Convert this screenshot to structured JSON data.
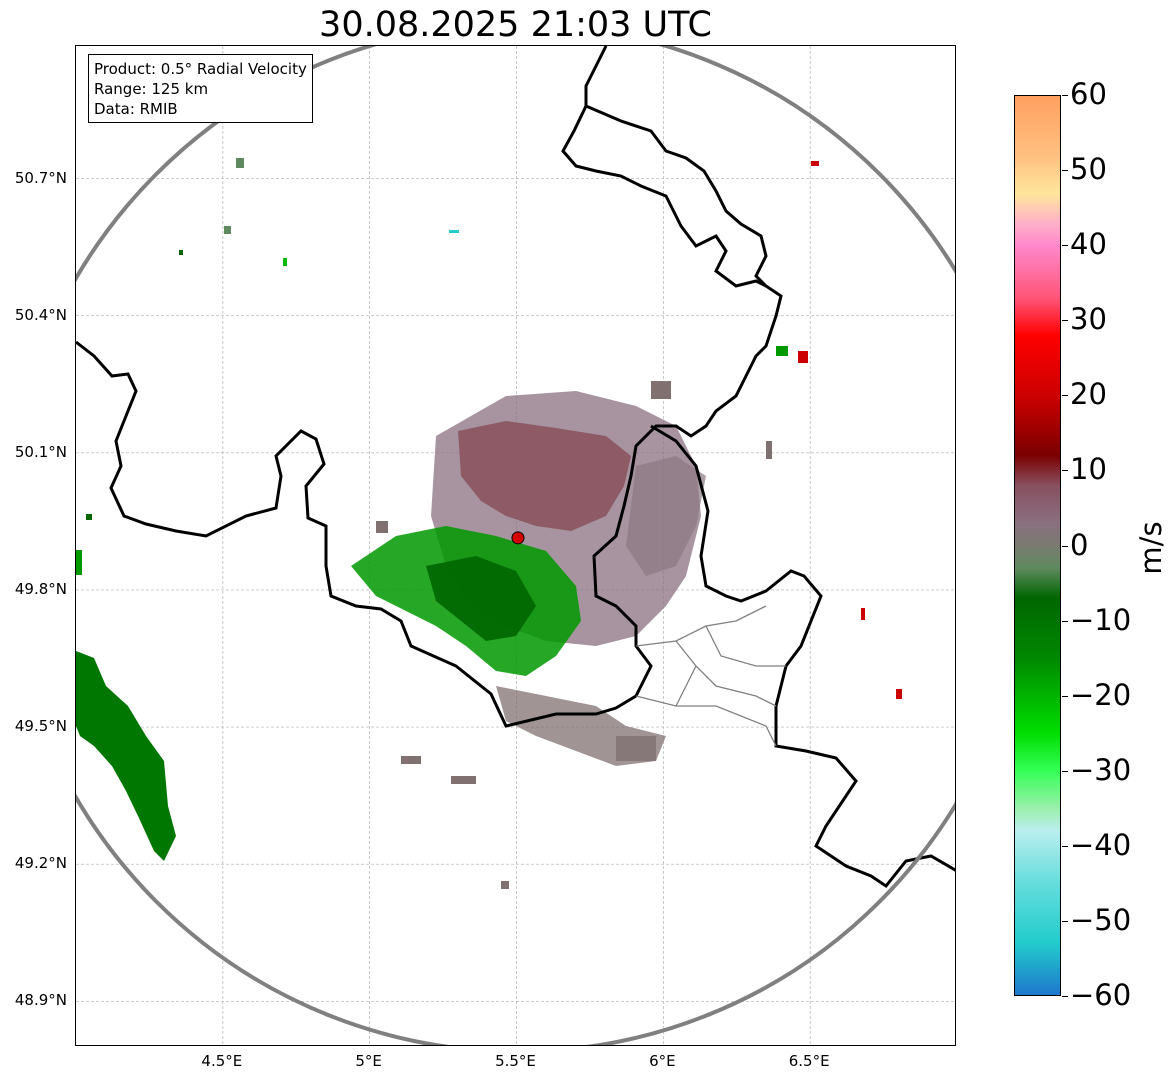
{
  "title": "30.08.2025 21:03 UTC",
  "info_box": {
    "product": "Product: 0.5° Radial Velocity",
    "range": "Range: 125 km",
    "source": "Data: RMIB"
  },
  "map": {
    "lon_range": [
      4.0,
      7.0
    ],
    "lat_range": [
      48.8,
      50.99
    ],
    "lon_ticks": [
      {
        "value": 4.5,
        "label": "4.5°E"
      },
      {
        "value": 5.0,
        "label": "5°E"
      },
      {
        "value": 5.5,
        "label": "5.5°E"
      },
      {
        "value": 6.0,
        "label": "6°E"
      },
      {
        "value": 6.5,
        "label": "6.5°E"
      }
    ],
    "lat_ticks": [
      {
        "value": 50.7,
        "label": "50.7°N"
      },
      {
        "value": 50.4,
        "label": "50.4°N"
      },
      {
        "value": 50.1,
        "label": "50.1°N"
      },
      {
        "value": 49.8,
        "label": "49.8°N"
      },
      {
        "value": 49.5,
        "label": "49.5°N"
      },
      {
        "value": 49.2,
        "label": "49.2°N"
      },
      {
        "value": 48.9,
        "label": "48.9°N"
      }
    ],
    "radar_site": {
      "lon": 5.505,
      "lat": 49.914
    },
    "range_ring_km": 125,
    "colors": {
      "border": "#000000",
      "subregion": "#808080",
      "ring": "#808080",
      "grid": "#b0b0b0",
      "site_marker": "#d40000"
    }
  },
  "colorbar": {
    "label": "m/s",
    "min": -60,
    "max": 60,
    "ticks": [
      "60",
      "50",
      "40",
      "30",
      "20",
      "10",
      "0",
      "−10",
      "−20",
      "−30",
      "−40",
      "−50",
      "−60"
    ],
    "tick_values": [
      60,
      50,
      40,
      30,
      20,
      10,
      0,
      -10,
      -20,
      -30,
      -40,
      -50,
      -60
    ],
    "gradient_stops": [
      {
        "value": 60,
        "color": "#ffa060"
      },
      {
        "value": 52,
        "color": "#ffc080"
      },
      {
        "value": 47,
        "color": "#ffe69c"
      },
      {
        "value": 43,
        "color": "#ffb0c8"
      },
      {
        "value": 40,
        "color": "#ff88cc"
      },
      {
        "value": 33,
        "color": "#ff5577"
      },
      {
        "value": 28,
        "color": "#ff0000"
      },
      {
        "value": 20,
        "color": "#cc0000"
      },
      {
        "value": 12,
        "color": "#7a0000"
      },
      {
        "value": 8,
        "color": "#885060"
      },
      {
        "value": 3,
        "color": "#8a7080"
      },
      {
        "value": 0,
        "color": "#7a7a70"
      },
      {
        "value": -3,
        "color": "#5f8a5f"
      },
      {
        "value": -7,
        "color": "#006600"
      },
      {
        "value": -15,
        "color": "#008800"
      },
      {
        "value": -25,
        "color": "#00dd00"
      },
      {
        "value": -30,
        "color": "#33ff55"
      },
      {
        "value": -35,
        "color": "#99f0aa"
      },
      {
        "value": -38,
        "color": "#bbeeee"
      },
      {
        "value": -45,
        "color": "#66dddd"
      },
      {
        "value": -53,
        "color": "#22cccc"
      },
      {
        "value": -60,
        "color": "#1e77cc"
      }
    ]
  }
}
